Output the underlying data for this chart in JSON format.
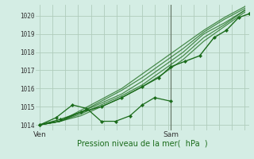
{
  "bg_color": "#d4ede4",
  "grid_color": "#b0ccbc",
  "line_color": "#1a6b1a",
  "marker_color": "#1a6b1a",
  "ylabel_ticks": [
    1014,
    1015,
    1016,
    1017,
    1018,
    1019,
    1020
  ],
  "xlabel": "Pression niveau de la mer(  hPa  )",
  "xtick_labels": [
    "Ven",
    "Sam"
  ],
  "xtick_pos": [
    0.0,
    0.64
  ],
  "vline_x": 0.64,
  "ylim": [
    1013.7,
    1020.6
  ],
  "xlim": [
    -0.02,
    1.02
  ],
  "smooth_series_x": [
    0.0,
    0.1,
    0.2,
    0.3,
    0.4,
    0.5,
    0.6,
    0.7,
    0.8,
    0.9,
    1.0
  ],
  "smooth_series": [
    [
      1014.0,
      1014.2,
      1014.5,
      1015.0,
      1015.5,
      1016.1,
      1016.8,
      1017.6,
      1018.6,
      1019.4,
      1020.2
    ],
    [
      1014.0,
      1014.2,
      1014.6,
      1015.1,
      1015.6,
      1016.2,
      1017.0,
      1017.8,
      1018.8,
      1019.5,
      1020.3
    ],
    [
      1014.0,
      1014.2,
      1014.7,
      1015.2,
      1015.7,
      1016.4,
      1017.2,
      1018.0,
      1019.0,
      1019.6,
      1020.3
    ],
    [
      1014.0,
      1014.2,
      1014.7,
      1015.3,
      1015.9,
      1016.6,
      1017.4,
      1018.2,
      1019.1,
      1019.8,
      1020.4
    ],
    [
      1014.0,
      1014.2,
      1014.8,
      1015.4,
      1016.0,
      1016.8,
      1017.6,
      1018.4,
      1019.2,
      1019.9,
      1020.5
    ]
  ],
  "zigzag_x": [
    0.0,
    0.08,
    0.16,
    0.23,
    0.3,
    0.37,
    0.44,
    0.5,
    0.56,
    0.64
  ],
  "zigzag_y": [
    1014.0,
    1014.4,
    1015.1,
    1014.9,
    1014.2,
    1014.2,
    1014.5,
    1015.1,
    1015.5,
    1015.3
  ],
  "marked_x": [
    0.0,
    0.1,
    0.2,
    0.3,
    0.4,
    0.5,
    0.58,
    0.64,
    0.71,
    0.78,
    0.85,
    0.91,
    0.97,
    1.02
  ],
  "marked_y": [
    1014.0,
    1014.3,
    1014.7,
    1015.0,
    1015.5,
    1016.1,
    1016.6,
    1017.2,
    1017.5,
    1017.8,
    1018.8,
    1019.2,
    1019.9,
    1020.1
  ]
}
